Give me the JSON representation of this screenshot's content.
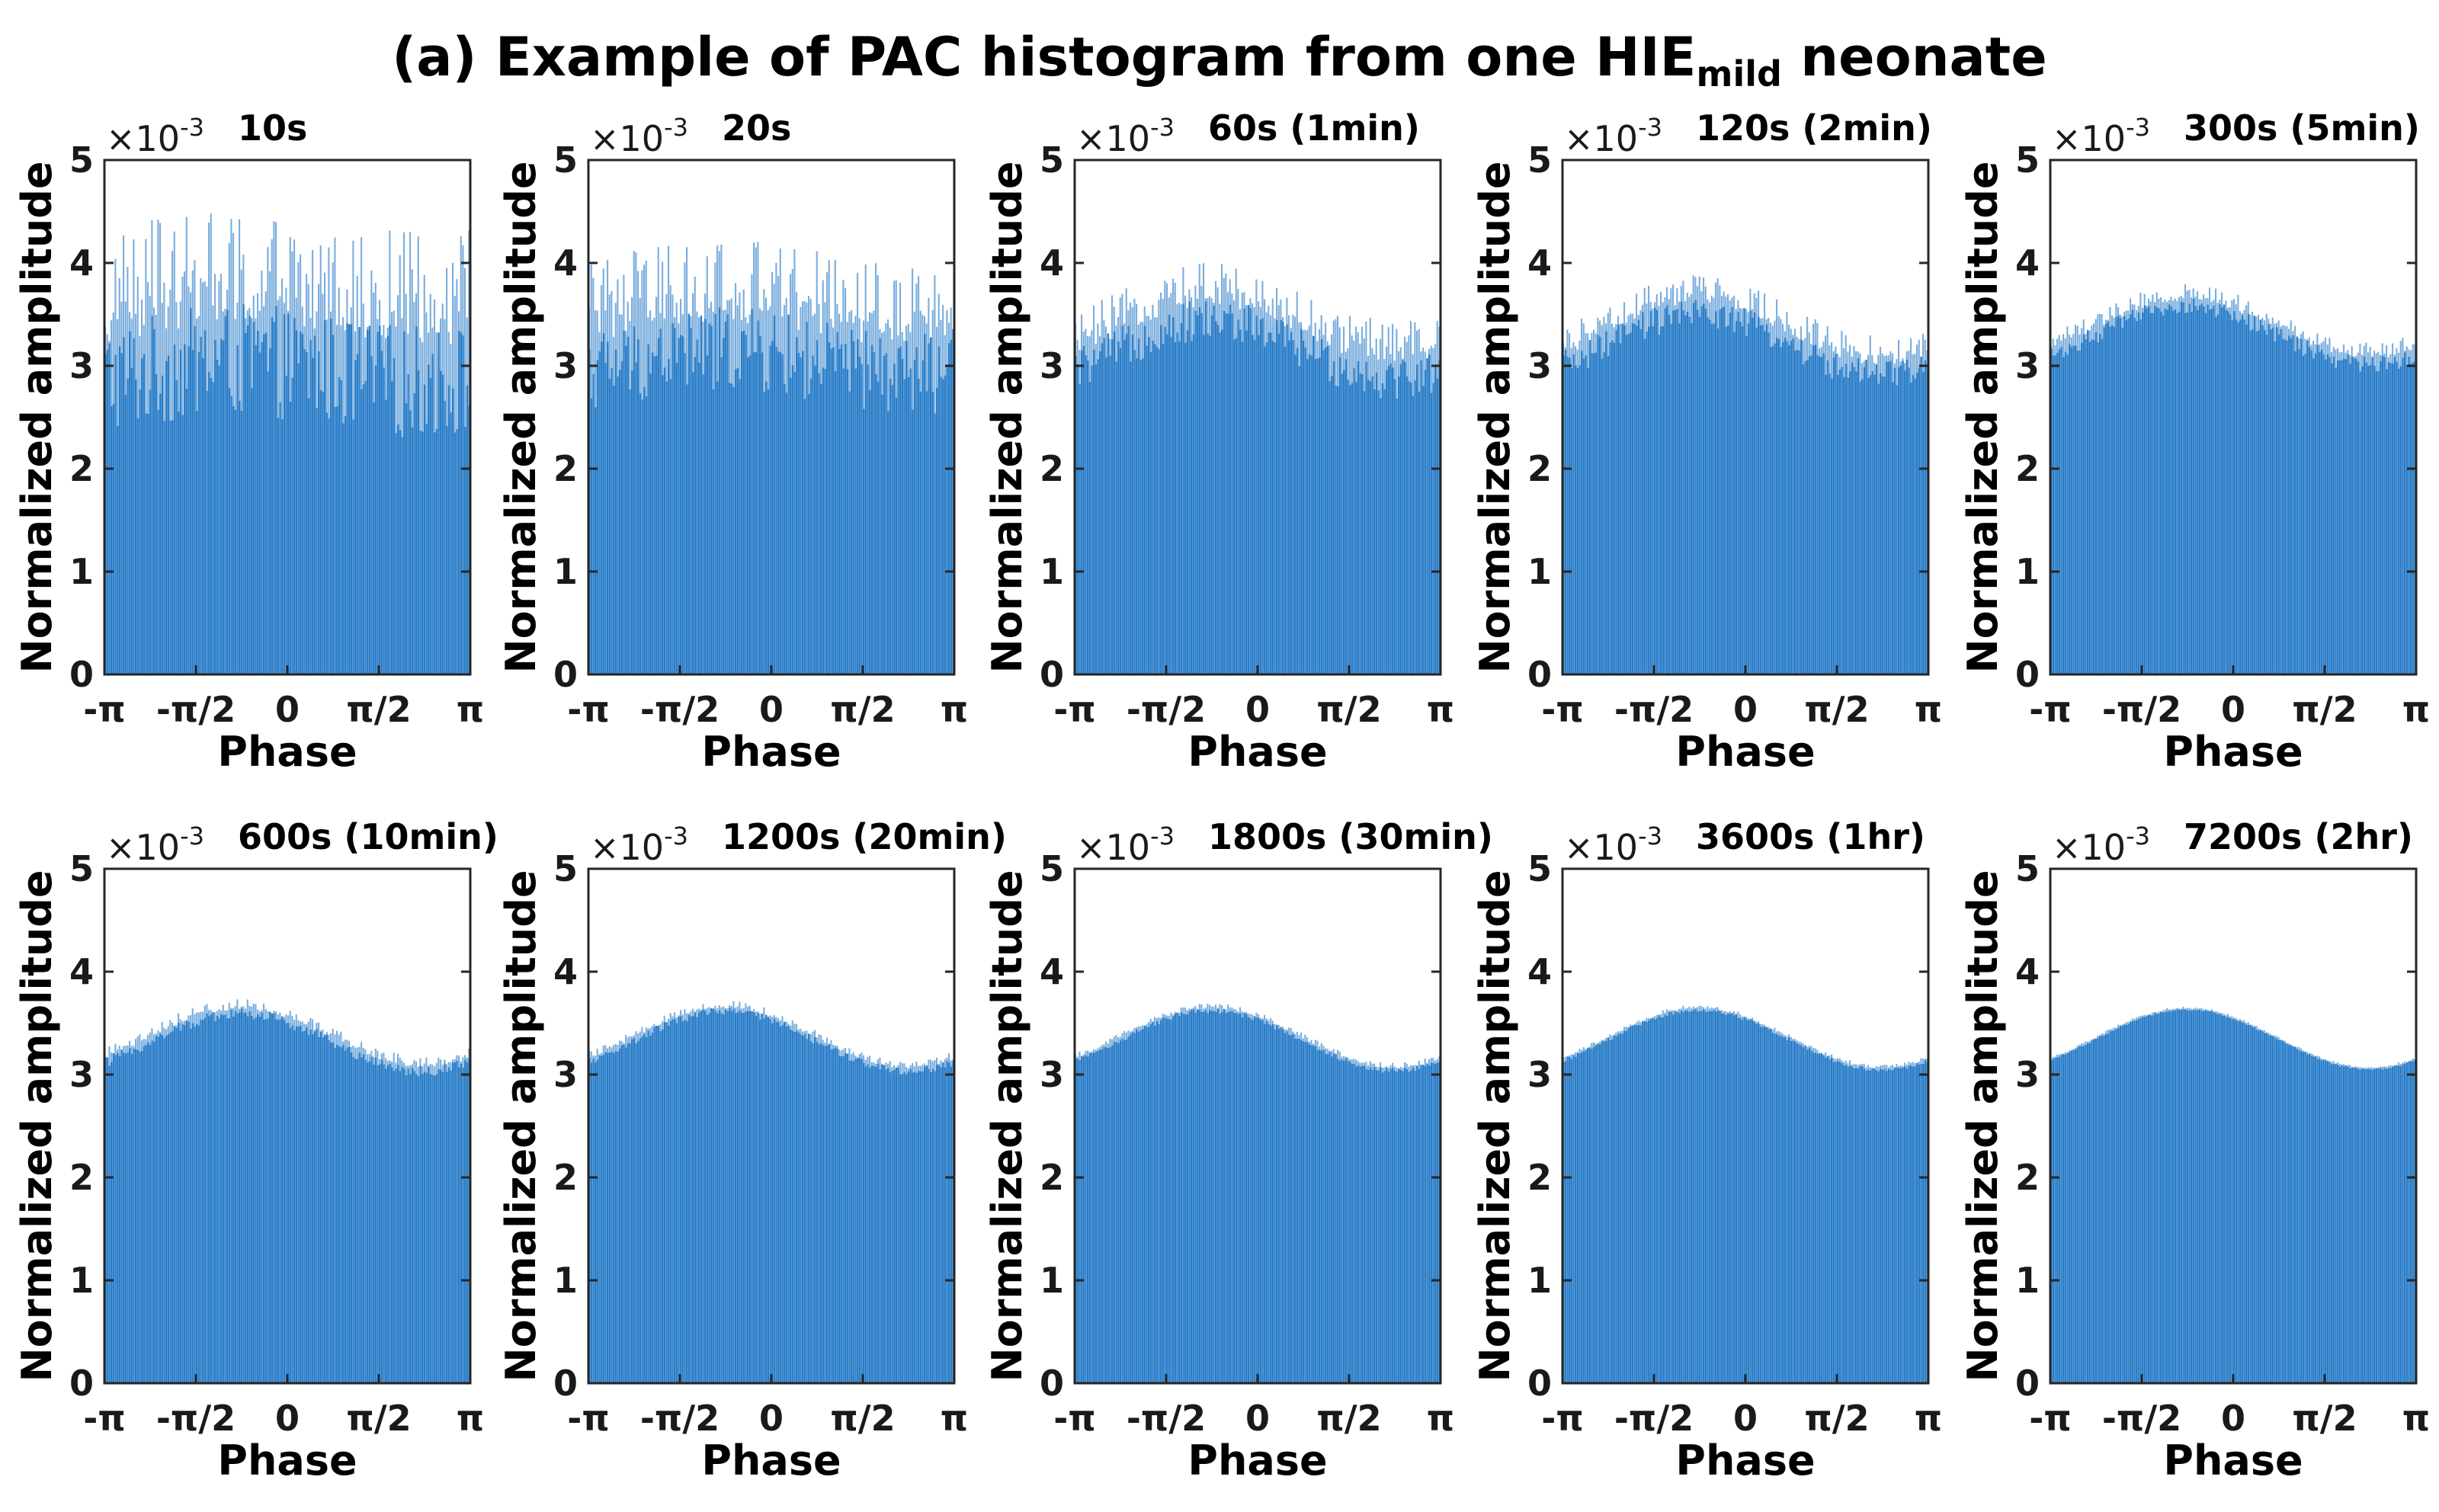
{
  "figure": {
    "title_main": "(a) Example of PAC histogram from one HIE",
    "title_sub": "mild",
    "title_tail": " neonate"
  },
  "colors": {
    "bar": "#2a7dc8",
    "axis": "#262626"
  },
  "chart_data": [
    {
      "type": "bar",
      "title": "10s",
      "ylabel": "Normalized amplitude",
      "xlabel": "Phase",
      "scale_label": "×10",
      "scale_exponent": "-3",
      "ylim": [
        0,
        5
      ],
      "yticks": [
        "0",
        "1",
        "2",
        "3",
        "4",
        "5"
      ],
      "xticks": [
        "-π",
        "-π/2",
        "0",
        "π/2",
        "π"
      ],
      "xlim": [
        -3.1416,
        3.1416
      ],
      "bins": 180,
      "baseline": 3.3,
      "sine_amp": 0.1,
      "peak_phase": -0.8,
      "noise": 1.0
    },
    {
      "type": "bar",
      "title": "20s",
      "ylabel": "Normalized amplitude",
      "xlabel": "Phase",
      "scale_label": "×10",
      "scale_exponent": "-3",
      "ylim": [
        0,
        5
      ],
      "yticks": [
        "0",
        "1",
        "2",
        "3",
        "4",
        "5"
      ],
      "xticks": [
        "-π",
        "-π/2",
        "0",
        "π/2",
        "π"
      ],
      "xlim": [
        -3.1416,
        3.1416
      ],
      "bins": 180,
      "baseline": 3.3,
      "sine_amp": 0.12,
      "peak_phase": -0.8,
      "noise": 0.75
    },
    {
      "type": "bar",
      "title": "60s  (1min)",
      "ylabel": "Normalized amplitude",
      "xlabel": "Phase",
      "scale_label": "×10",
      "scale_exponent": "-3",
      "ylim": [
        0,
        5
      ],
      "yticks": [
        "0",
        "1",
        "2",
        "3",
        "4",
        "5"
      ],
      "xticks": [
        "-π",
        "-π/2",
        "0",
        "π/2",
        "π"
      ],
      "xlim": [
        -3.1416,
        3.1416
      ],
      "bins": 180,
      "baseline": 3.3,
      "sine_amp": 0.28,
      "peak_phase": -0.8,
      "noise": 0.38
    },
    {
      "type": "bar",
      "title": "120s (2min)",
      "ylabel": "Normalized amplitude",
      "xlabel": "Phase",
      "scale_label": "×10",
      "scale_exponent": "-3",
      "ylim": [
        0,
        5
      ],
      "yticks": [
        "0",
        "1",
        "2",
        "3",
        "4",
        "5"
      ],
      "xticks": [
        "-π",
        "-π/2",
        "0",
        "π/2",
        "π"
      ],
      "xlim": [
        -3.1416,
        3.1416
      ],
      "bins": 180,
      "baseline": 3.3,
      "sine_amp": 0.3,
      "peak_phase": -0.8,
      "noise": 0.26
    },
    {
      "type": "bar",
      "title": "300s (5min)",
      "ylabel": "Normalized amplitude",
      "xlabel": "Phase",
      "scale_label": "×10",
      "scale_exponent": "-3",
      "ylim": [
        0,
        5
      ],
      "yticks": [
        "0",
        "1",
        "2",
        "3",
        "4",
        "5"
      ],
      "xticks": [
        "-π",
        "-π/2",
        "0",
        "π/2",
        "π"
      ],
      "xlim": [
        -3.1416,
        3.1416
      ],
      "bins": 180,
      "baseline": 3.35,
      "sine_amp": 0.28,
      "peak_phase": -0.8,
      "noise": 0.15
    },
    {
      "type": "bar",
      "title": "600s (10min)",
      "ylabel": "Normalized amplitude",
      "xlabel": "Phase",
      "scale_label": "×10",
      "scale_exponent": "-3",
      "ylim": [
        0,
        5
      ],
      "yticks": [
        "0",
        "1",
        "2",
        "3",
        "4",
        "5"
      ],
      "xticks": [
        "-π",
        "-π/2",
        "0",
        "π/2",
        "π"
      ],
      "xlim": [
        -3.1416,
        3.1416
      ],
      "bins": 180,
      "baseline": 3.35,
      "sine_amp": 0.28,
      "peak_phase": -0.8,
      "noise": 0.1
    },
    {
      "type": "bar",
      "title": "1200s (20min)",
      "ylabel": "Normalized amplitude",
      "xlabel": "Phase",
      "scale_label": "×10",
      "scale_exponent": "-3",
      "ylim": [
        0,
        5
      ],
      "yticks": [
        "0",
        "1",
        "2",
        "3",
        "4",
        "5"
      ],
      "xticks": [
        "-π",
        "-π/2",
        "0",
        "π/2",
        "π"
      ],
      "xlim": [
        -3.1416,
        3.1416
      ],
      "bins": 180,
      "baseline": 3.35,
      "sine_amp": 0.29,
      "peak_phase": -0.8,
      "noise": 0.07
    },
    {
      "type": "bar",
      "title": "1800s  (30min)",
      "ylabel": "Normalized amplitude",
      "xlabel": "Phase",
      "scale_label": "×10",
      "scale_exponent": "-3",
      "ylim": [
        0,
        5
      ],
      "yticks": [
        "0",
        "1",
        "2",
        "3",
        "4",
        "5"
      ],
      "xticks": [
        "-π",
        "-π/2",
        "0",
        "π/2",
        "π"
      ],
      "xlim": [
        -3.1416,
        3.1416
      ],
      "bins": 180,
      "baseline": 3.35,
      "sine_amp": 0.29,
      "peak_phase": -0.8,
      "noise": 0.05
    },
    {
      "type": "bar",
      "title": "3600s (1hr)",
      "ylabel": "Normalized amplitude",
      "xlabel": "Phase",
      "scale_label": "×10",
      "scale_exponent": "-3",
      "ylim": [
        0,
        5
      ],
      "yticks": [
        "0",
        "1",
        "2",
        "3",
        "4",
        "5"
      ],
      "xticks": [
        "-π",
        "-π/2",
        "0",
        "π/2",
        "π"
      ],
      "xlim": [
        -3.1416,
        3.1416
      ],
      "bins": 180,
      "baseline": 3.35,
      "sine_amp": 0.29,
      "peak_phase": -0.8,
      "noise": 0.035
    },
    {
      "type": "bar",
      "title": "7200s (2hr)",
      "ylabel": "Normalized amplitude",
      "xlabel": "Phase",
      "scale_label": "×10",
      "scale_exponent": "-3",
      "ylim": [
        0,
        5
      ],
      "yticks": [
        "0",
        "1",
        "2",
        "3",
        "4",
        "5"
      ],
      "xticks": [
        "-π",
        "-π/2",
        "0",
        "π/2",
        "π"
      ],
      "xlim": [
        -3.1416,
        3.1416
      ],
      "bins": 180,
      "baseline": 3.35,
      "sine_amp": 0.29,
      "peak_phase": -0.8,
      "noise": 0.02
    }
  ]
}
